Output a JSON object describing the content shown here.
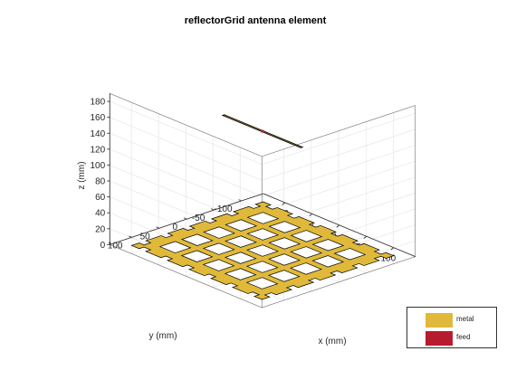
{
  "chart_data": {
    "type": "3d-surface",
    "title": "reflectorGrid antenna element",
    "xlabel": "x (mm)",
    "ylabel": "y (mm)",
    "zlabel": "z (mm)",
    "xlim": [
      -140,
      140
    ],
    "ylim": [
      -140,
      140
    ],
    "zlim": [
      0,
      190
    ],
    "xticks": [
      -100,
      -50,
      0,
      50,
      100
    ],
    "yticks": [
      -100,
      -50,
      0,
      50,
      100
    ],
    "zticks": [
      0,
      20,
      40,
      60,
      80,
      100,
      120,
      140,
      160,
      180
    ],
    "grid": true,
    "legend_position": "bottom-right",
    "legend": [
      {
        "label": "metal",
        "color": "#e0b93a"
      },
      {
        "label": "feed",
        "color": "#b71c2e"
      }
    ],
    "reflector": {
      "z": 0,
      "cells": 6,
      "grid_range": [
        -120,
        120
      ],
      "hole_size": 14
    },
    "dipole": {
      "z": 150,
      "x_range": [
        -72,
        72
      ],
      "y": 0,
      "color": "#e0b93a"
    },
    "feed": {
      "x": 0,
      "y": 0,
      "z": 150,
      "color": "#b71c2e"
    }
  }
}
